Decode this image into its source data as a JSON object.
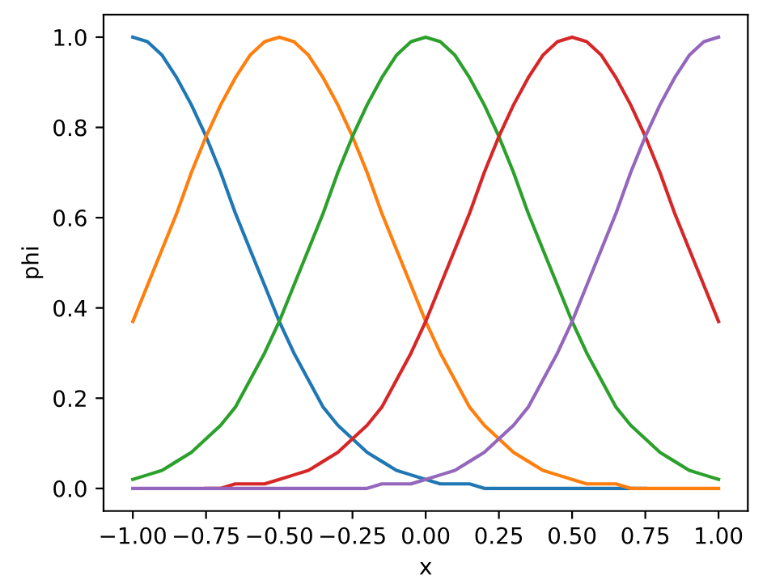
{
  "chart_data": {
    "type": "line",
    "xlabel": "x",
    "ylabel": "phi",
    "x": [
      -1,
      -0.95,
      -0.9,
      -0.85,
      -0.8,
      -0.75,
      -0.7,
      -0.65,
      -0.6,
      -0.55,
      -0.5,
      -0.45,
      -0.4,
      -0.35,
      -0.3,
      -0.25,
      -0.2,
      -0.15,
      -0.1,
      -0.05,
      0,
      0.05,
      0.1,
      0.15,
      0.2,
      0.25,
      0.3,
      0.35,
      0.4,
      0.45,
      0.5,
      0.55,
      0.6,
      0.65,
      0.7,
      0.75,
      0.8,
      0.85,
      0.9,
      0.95,
      1
    ],
    "series": [
      {
        "color": "#1f77b4",
        "values": [
          1,
          0.99,
          0.96,
          0.91,
          0.85,
          0.78,
          0.7,
          0.61,
          0.53,
          0.45,
          0.37,
          0.3,
          0.24,
          0.18,
          0.14,
          0.11,
          0.08,
          0.06,
          0.04,
          0.03,
          0.02,
          0.01,
          0.01,
          0.01,
          0,
          0,
          0,
          0,
          0,
          0,
          0,
          0,
          0,
          0,
          0,
          0,
          null,
          null,
          null,
          null,
          null
        ]
      },
      {
        "color": "#ff7f0e",
        "values": [
          0.37,
          0.45,
          0.53,
          0.61,
          0.7,
          0.78,
          0.85,
          0.91,
          0.96,
          0.99,
          1,
          0.99,
          0.96,
          0.91,
          0.85,
          0.78,
          0.7,
          0.61,
          0.53,
          0.45,
          0.37,
          0.3,
          0.24,
          0.18,
          0.14,
          0.11,
          0.08,
          0.06,
          0.04,
          0.03,
          0.02,
          0.01,
          0.01,
          0.01,
          0,
          0,
          0,
          0,
          0,
          0,
          0
        ]
      },
      {
        "color": "#2ca02c",
        "values": [
          0.02,
          0.03,
          0.04,
          0.06,
          0.08,
          0.11,
          0.14,
          0.18,
          0.24,
          0.3,
          0.37,
          0.45,
          0.53,
          0.61,
          0.7,
          0.78,
          0.85,
          0.91,
          0.96,
          0.99,
          1,
          0.99,
          0.96,
          0.91,
          0.85,
          0.78,
          0.7,
          0.61,
          0.53,
          0.45,
          0.37,
          0.3,
          0.24,
          0.18,
          0.14,
          0.11,
          0.08,
          0.06,
          0.04,
          0.03,
          0.02
        ]
      },
      {
        "color": "#d62728",
        "values": [
          null,
          null,
          null,
          null,
          null,
          0,
          0,
          0.01,
          0.01,
          0.01,
          0.02,
          0.03,
          0.04,
          0.06,
          0.08,
          0.11,
          0.14,
          0.18,
          0.24,
          0.3,
          0.37,
          0.45,
          0.53,
          0.61,
          0.7,
          0.78,
          0.85,
          0.91,
          0.96,
          0.99,
          1,
          0.99,
          0.96,
          0.91,
          0.85,
          0.78,
          0.7,
          0.61,
          0.53,
          0.45,
          0.37
        ]
      },
      {
        "color": "#9467bd",
        "values": [
          0,
          0,
          0,
          0,
          0,
          0,
          0,
          0,
          0,
          0,
          0,
          0,
          0,
          0,
          0,
          0,
          0,
          0.01,
          0.01,
          0.01,
          0.02,
          0.03,
          0.04,
          0.06,
          0.08,
          0.11,
          0.14,
          0.18,
          0.24,
          0.3,
          0.37,
          0.45,
          0.53,
          0.61,
          0.7,
          0.78,
          0.85,
          0.91,
          0.96,
          0.99,
          1
        ]
      }
    ],
    "xlim": [
      -1.1,
      1.1
    ],
    "ylim": [
      -0.05,
      1.05
    ],
    "xticks": [
      {
        "value": -1,
        "label": "−1.00"
      },
      {
        "value": -0.75,
        "label": "−0.75"
      },
      {
        "value": -0.5,
        "label": "−0.50"
      },
      {
        "value": -0.25,
        "label": "−0.25"
      },
      {
        "value": 0,
        "label": "0.00"
      },
      {
        "value": 0.25,
        "label": "0.25"
      },
      {
        "value": 0.5,
        "label": "0.50"
      },
      {
        "value": 0.75,
        "label": "0.75"
      },
      {
        "value": 1,
        "label": "1.00"
      }
    ],
    "yticks": [
      {
        "value": 0,
        "label": "0.0"
      },
      {
        "value": 0.2,
        "label": "0.2"
      },
      {
        "value": 0.4,
        "label": "0.4"
      },
      {
        "value": 0.6,
        "label": "0.6"
      },
      {
        "value": 0.8,
        "label": "0.8"
      },
      {
        "value": 1,
        "label": "1.0"
      }
    ],
    "grid": false,
    "legend": false
  }
}
